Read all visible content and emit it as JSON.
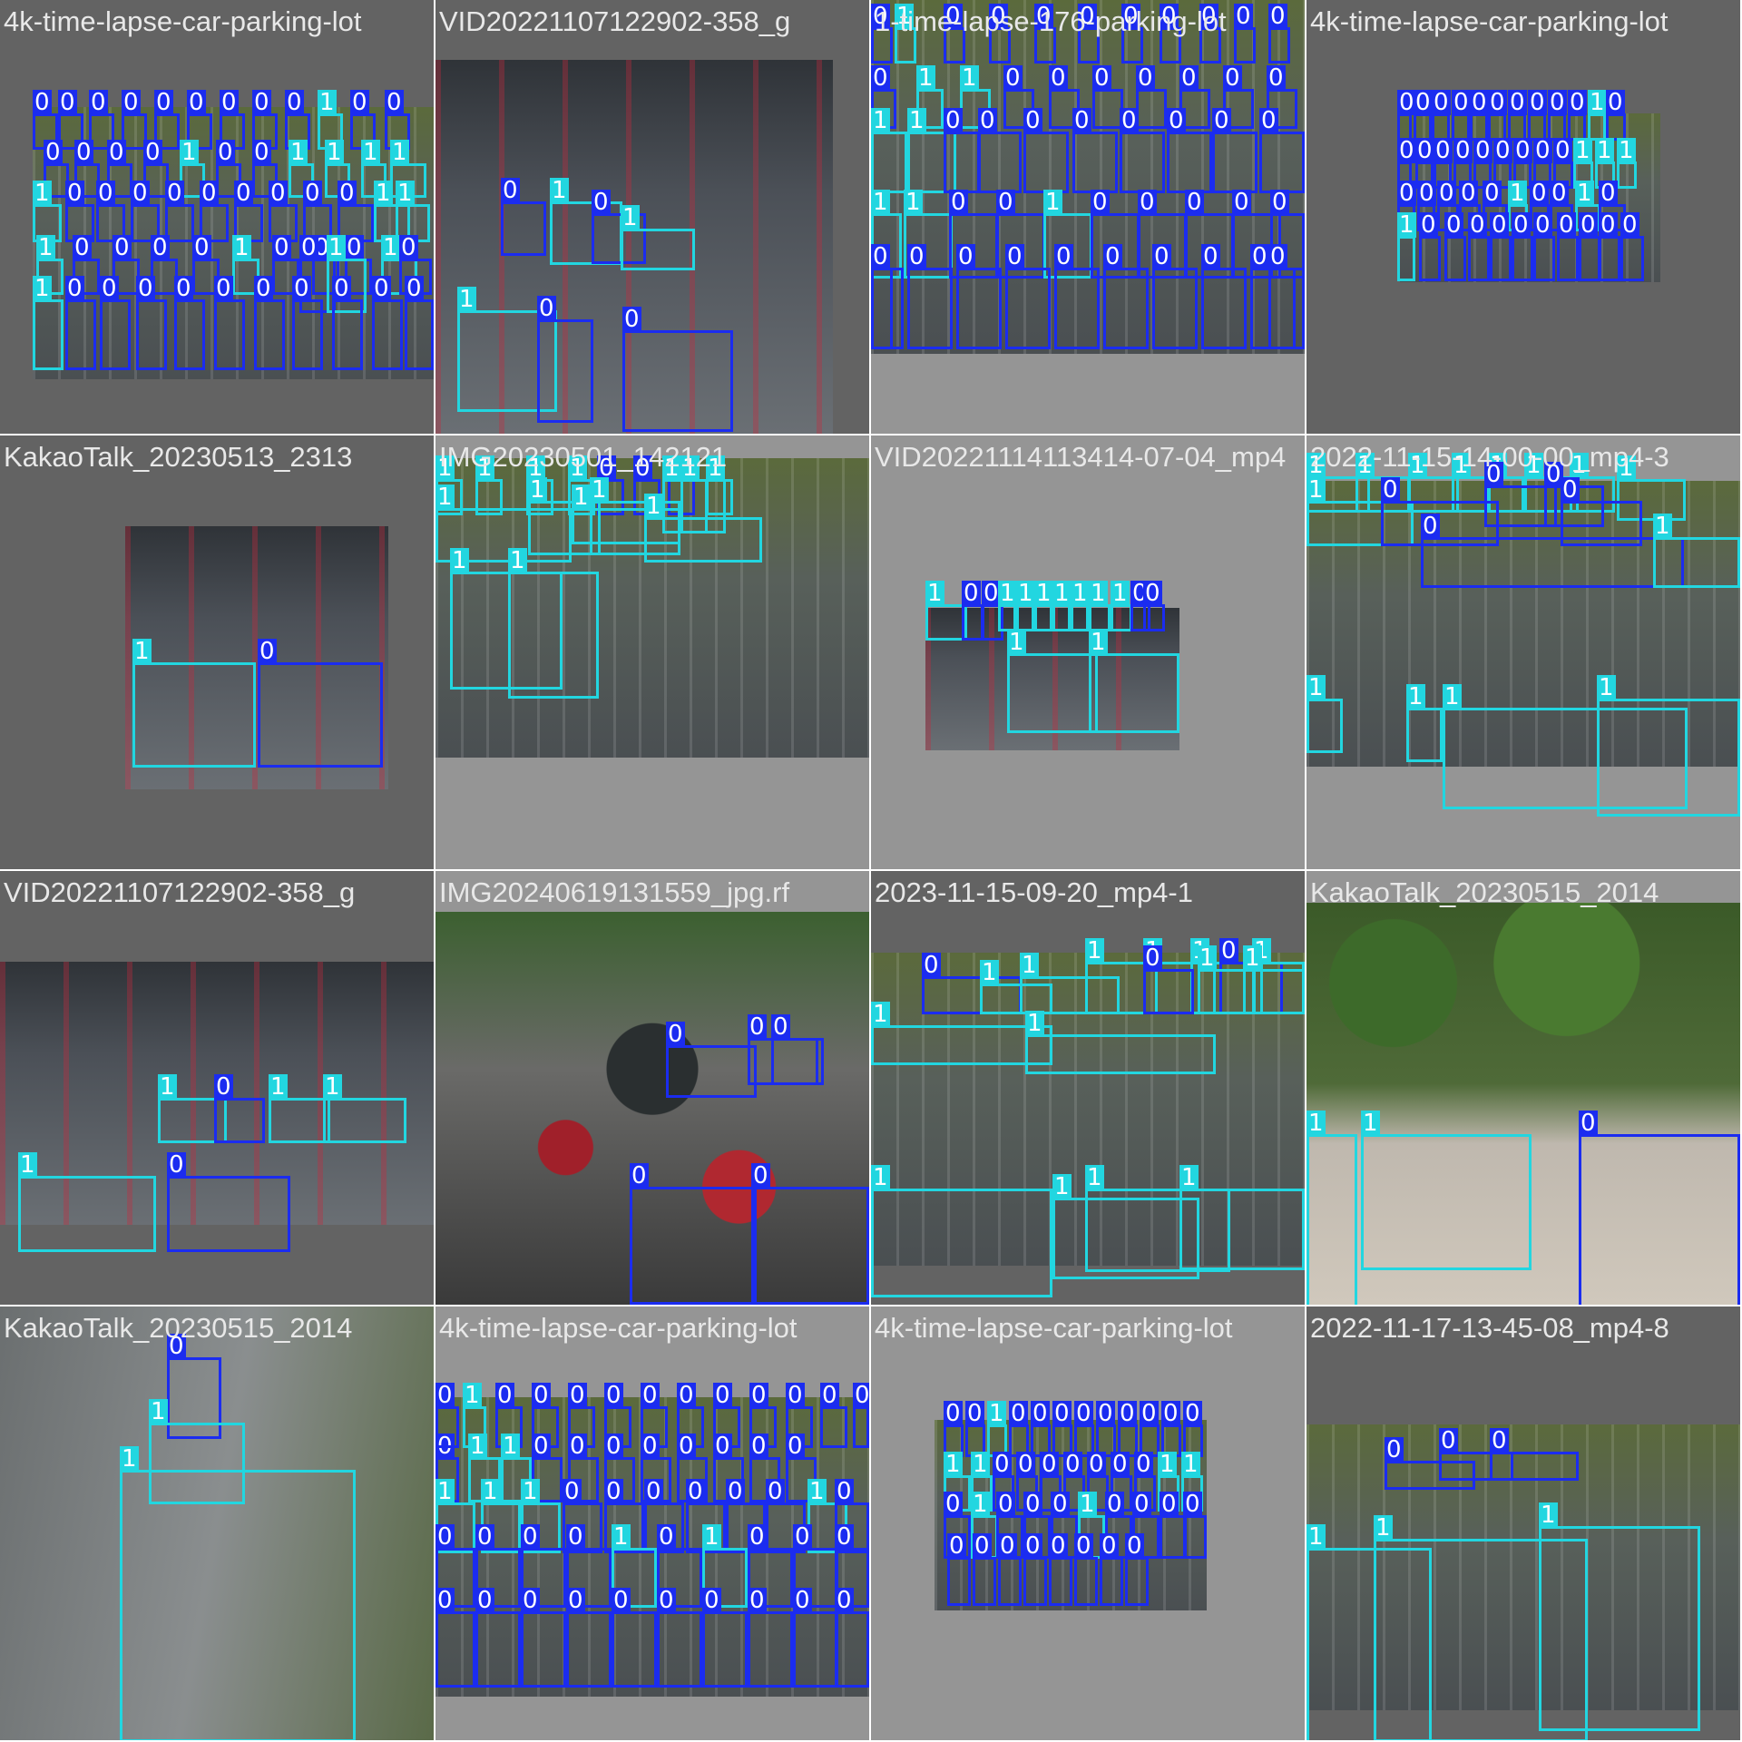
{
  "mosaic": {
    "class_colors": {
      "0": "#1b2cf0",
      "1": "#22d6e0"
    },
    "tiles": [
      {
        "title": "4k-time-lapse-car-parking-lot",
        "bg": "#636363",
        "theme": "grass",
        "labels": [
          "0",
          "0",
          "0",
          "0",
          "0",
          "0",
          "0",
          "0",
          "0",
          "1",
          "0",
          "0",
          "0",
          "0",
          "0",
          "0",
          "1",
          "0",
          "0",
          "1",
          "1",
          "1",
          "1",
          "1",
          "0",
          "0",
          "0",
          "0",
          "0",
          "0",
          "0",
          "0",
          "0",
          "1",
          "1",
          "1",
          "0",
          "0",
          "0",
          "0",
          "1",
          "0",
          "0",
          "0",
          "1",
          "0",
          "0",
          "1",
          "1",
          "0",
          "0",
          "0",
          "0",
          "0",
          "0",
          "0",
          "0",
          "0",
          "0"
        ]
      },
      {
        "title": "VID20221107122902-358_g",
        "bg": "#636363",
        "theme": "garage",
        "labels": [
          "0",
          "1",
          "0",
          "1",
          "1",
          "0",
          "0"
        ]
      },
      {
        "title": "1-time-lapse-176-parking-lot",
        "bg": "#959595",
        "theme": "grass",
        "labels": [
          "0",
          "1",
          "0",
          "0",
          "0",
          "0",
          "0",
          "0",
          "0",
          "0",
          "0",
          "0",
          "1",
          "1",
          "0",
          "0",
          "0",
          "0",
          "0",
          "0",
          "0",
          "1",
          "1",
          "0",
          "0",
          "0",
          "0",
          "0",
          "0",
          "0",
          "0",
          "1",
          "1",
          "0",
          "0",
          "1",
          "0",
          "0",
          "0",
          "0",
          "0",
          "0",
          "0",
          "0",
          "0",
          "0",
          "0",
          "0",
          "0",
          "0",
          "0",
          "0"
        ]
      },
      {
        "title": "4k-time-lapse-car-parking-lot",
        "bg": "#636363",
        "theme": "grass",
        "labels": [
          "0",
          "0",
          "0",
          "0",
          "0",
          "0",
          "0",
          "0",
          "0",
          "0",
          "1",
          "0",
          "0",
          "0",
          "0",
          "0",
          "0",
          "0",
          "0",
          "0",
          "0",
          "1",
          "1",
          "1",
          "0",
          "0",
          "0",
          "0",
          "0",
          "1",
          "0",
          "0",
          "1",
          "0",
          "1",
          "0",
          "0",
          "0",
          "0",
          "0",
          "0",
          "0",
          "0",
          "0",
          "0"
        ]
      },
      {
        "title": "KakaoTalk_20230513_2313",
        "bg": "#636363",
        "theme": "garage",
        "labels": [
          "1",
          "0"
        ]
      },
      {
        "title": "IMG20230501_142121",
        "bg": "#959595",
        "theme": "grass",
        "labels": [
          "1",
          "1",
          "1",
          "1",
          "0",
          "0",
          "0",
          "1",
          "1",
          "1",
          "1",
          "1",
          "1",
          "1",
          "1",
          "1",
          "1"
        ]
      },
      {
        "title": "VID20221114113414-07-04_mp4",
        "bg": "#959595",
        "theme": "garage",
        "labels": [
          "1",
          "0",
          "0",
          "1",
          "1",
          "1",
          "1",
          "1",
          "1",
          "1",
          "0",
          "0",
          "1",
          "1"
        ]
      },
      {
        "title": "2022-11-15-14-00-00_mp4-3",
        "bg": "#959595",
        "theme": "grass",
        "labels": [
          "1",
          "1",
          "1",
          "1",
          "1",
          "1",
          "1",
          "0",
          "0",
          "1",
          "1",
          "0",
          "0",
          "0",
          "1",
          "1",
          "1",
          "1",
          "1"
        ]
      },
      {
        "title": "VID20221107122902-358_g",
        "bg": "#636363",
        "theme": "garage",
        "labels": [
          "1",
          "0",
          "1",
          "1",
          "1",
          "0"
        ]
      },
      {
        "title": "IMG20240619131559_jpg.rf",
        "bg": "#959595",
        "theme": "bikes",
        "labels": [
          "0",
          "0",
          "0",
          "0",
          "0"
        ]
      },
      {
        "title": "2023-11-15-09-20_mp4-1",
        "bg": "#636363",
        "theme": "grass",
        "labels": [
          "0",
          "1",
          "1",
          "1",
          "1",
          "1",
          "0",
          "1",
          "0",
          "1",
          "1",
          "1",
          "1",
          "1",
          "1",
          "1",
          "1"
        ]
      },
      {
        "title": "KakaoTalk_20230515_2014",
        "bg": "#959595",
        "theme": "foliage",
        "labels": [
          "1",
          "1",
          "0"
        ]
      },
      {
        "title": "KakaoTalk_20230515_2014",
        "bg": "#636363",
        "theme": "street",
        "labels": [
          "0",
          "1",
          "1"
        ]
      },
      {
        "title": "4k-time-lapse-car-parking-lot",
        "bg": "#959595",
        "theme": "grass",
        "labels": [
          "0",
          "1",
          "0",
          "0",
          "0",
          "0",
          "0",
          "0",
          "0",
          "0",
          "0",
          "0",
          "0",
          "0",
          "1",
          "1",
          "0",
          "0",
          "0",
          "0",
          "0",
          "0",
          "0",
          "0",
          "1",
          "1",
          "1",
          "0",
          "0",
          "0",
          "0",
          "0",
          "0",
          "1",
          "0",
          "0",
          "0",
          "0",
          "0",
          "1",
          "0",
          "1",
          "0",
          "0",
          "0",
          "0",
          "0",
          "0",
          "0",
          "0",
          "0",
          "0",
          "0",
          "0",
          "0",
          "0"
        ]
      },
      {
        "title": "4k-time-lapse-car-parking-lot",
        "bg": "#959595",
        "theme": "grass",
        "labels": [
          "0",
          "0",
          "1",
          "0",
          "0",
          "0",
          "0",
          "0",
          "0",
          "0",
          "0",
          "0",
          "1",
          "1",
          "0",
          "0",
          "0",
          "0",
          "0",
          "0",
          "0",
          "1",
          "1",
          "0",
          "1",
          "0",
          "0",
          "0",
          "1",
          "0",
          "0",
          "0",
          "0",
          "0",
          "0",
          "0",
          "0",
          "0",
          "0",
          "0",
          "0"
        ]
      },
      {
        "title": "2022-11-17-13-45-08_mp4-8",
        "bg": "#636363",
        "theme": "grass",
        "labels": [
          "0",
          "0",
          "0",
          "1",
          "1",
          "1"
        ]
      }
    ]
  }
}
